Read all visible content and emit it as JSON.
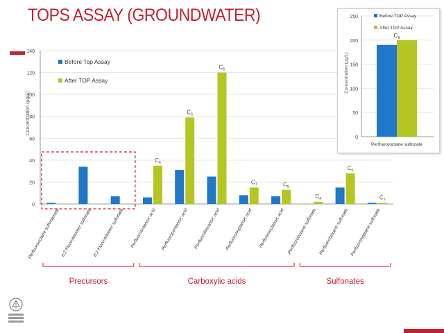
{
  "slide": {
    "title": "TOPS ASSAY (GROUNDWATER)",
    "colors": {
      "accent": "#c0222e",
      "before": "#1f78c8",
      "after": "#b5c522",
      "bracket": "#c0222e"
    }
  },
  "chart_data": [
    {
      "type": "bar",
      "ylabel": "Concentration (µg/L)",
      "ylim": [
        0,
        140
      ],
      "yticks": [
        0,
        20,
        40,
        60,
        80,
        100,
        120,
        140
      ],
      "legend_position": "top-left",
      "categories": [
        "Perfluorooctane sulfonamide",
        "6:2 Fluorotelomer sulfonate",
        "8:2 Fluorotelomer sulfonate",
        "Perfluorobutanoic acid",
        "Perfluoropentanoic acid",
        "Perfluorohexanoic acid",
        "Perfluoroheptanoic acid",
        "Perfluorooctanoic acid",
        "Perfluorobutane sulfonate",
        "Perfluorohexane sulfonate",
        "Perfluoroheptane sulfonate"
      ],
      "series": [
        {
          "name": "Before Top Assay",
          "values": [
            1,
            34,
            7,
            6,
            31,
            25,
            8,
            7,
            0,
            15,
            1
          ]
        },
        {
          "name": "After TOP Assay",
          "values": [
            0,
            0,
            0,
            35,
            79,
            120,
            15,
            13,
            2,
            28,
            1
          ]
        }
      ],
      "chain_labels": [
        {
          "category_index": 3,
          "base": "C",
          "sub": "4"
        },
        {
          "category_index": 4,
          "base": "C",
          "sub": "5"
        },
        {
          "category_index": 5,
          "base": "C",
          "sub": "6"
        },
        {
          "category_index": 6,
          "base": "C",
          "sub": "7"
        },
        {
          "category_index": 7,
          "base": "C",
          "sub": "8"
        },
        {
          "category_index": 8,
          "base": "C",
          "sub": "4"
        },
        {
          "category_index": 9,
          "base": "C",
          "sub": "6"
        },
        {
          "category_index": 10,
          "base": "C",
          "sub": "7"
        }
      ],
      "groups": [
        {
          "label": "Precursors",
          "from": 0,
          "to": 2
        },
        {
          "label": "Carboxylic acids",
          "from": 3,
          "to": 7
        },
        {
          "label": "Sulfonates",
          "from": 8,
          "to": 10
        }
      ]
    },
    {
      "type": "bar",
      "ylabel": "Concentration (µg/L)",
      "ylim": [
        0,
        250
      ],
      "yticks": [
        0,
        50,
        100,
        150,
        200,
        250
      ],
      "legend_position": "top-left",
      "categories": [
        "Perfluorooctane sulfonate"
      ],
      "series": [
        {
          "name": "Before TOP Assay",
          "values": [
            190
          ]
        },
        {
          "name": "After TOP Assay",
          "values": [
            200
          ]
        }
      ],
      "chain_labels": [
        {
          "category_index": 0,
          "base": "C",
          "sub": "8"
        }
      ]
    }
  ]
}
